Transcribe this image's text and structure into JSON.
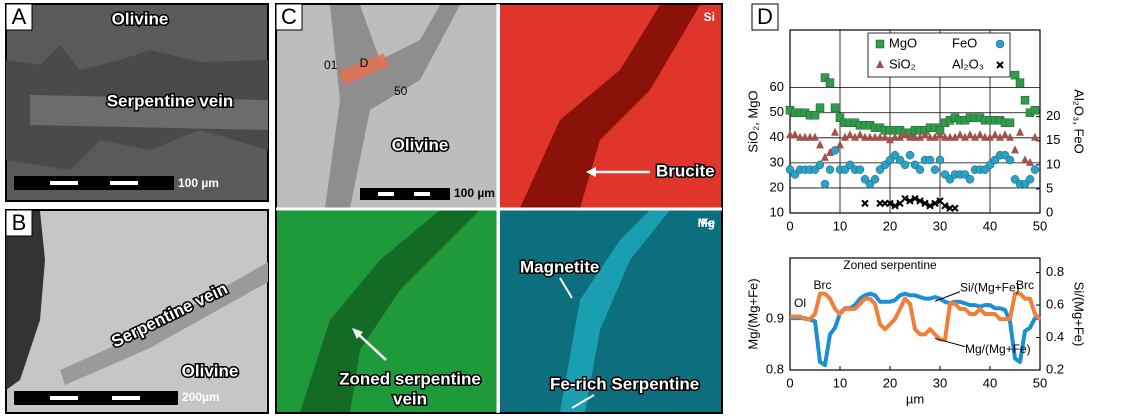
{
  "panels": {
    "A": {
      "label": "A",
      "texts": [
        "Olivine",
        "Serpentine vein"
      ],
      "scale": "100 µm"
    },
    "B": {
      "label": "B",
      "texts": [
        "Serpentine vein",
        "Olivine"
      ],
      "scale": "200µm"
    },
    "C": {
      "label": "C",
      "profile": [
        "01",
        "D",
        "50"
      ],
      "texts": [
        "Olivine"
      ],
      "scale": "100 µm",
      "maps": [
        {
          "element": "Si",
          "note": "Brucite"
        },
        {
          "element": "Mg",
          "note": [
            "Zoned serpentine",
            "vein"
          ]
        },
        {
          "element": "Fe",
          "note": [
            "Magnetite",
            "Fe-rich Serpentine"
          ]
        }
      ]
    },
    "D": {
      "label": "D"
    }
  },
  "chart_data": [
    {
      "type": "scatter",
      "xlim": [
        0,
        50
      ],
      "xticks": [
        0,
        10,
        20,
        30,
        40,
        50
      ],
      "ylim": [
        10,
        83
      ],
      "yticks": [
        10,
        20,
        30,
        40,
        50,
        60
      ],
      "y2lim": [
        0,
        38
      ],
      "y2ticks": [
        0,
        5,
        10,
        15,
        20
      ],
      "ylabel": "SiO₂, MgO",
      "y2label": "Al₂O₃, FeO",
      "grid": true,
      "series": [
        {
          "name": "MgO",
          "marker": "square",
          "color": "#2e9c4a",
          "x": [
            0,
            1,
            2,
            3,
            4,
            5,
            6,
            7,
            8,
            9,
            10,
            11,
            12,
            13,
            14,
            15,
            16,
            17,
            18,
            19,
            20,
            21,
            22,
            23,
            24,
            25,
            26,
            27,
            28,
            29,
            30,
            31,
            32,
            33,
            34,
            35,
            36,
            37,
            38,
            39,
            40,
            41,
            42,
            43,
            44,
            45,
            46,
            47,
            48,
            49
          ],
          "values": [
            51,
            50,
            50,
            50,
            49,
            49,
            52,
            64,
            62,
            52,
            48,
            46,
            46,
            46,
            45,
            45,
            45,
            44,
            44,
            43,
            43,
            43,
            43,
            42,
            42,
            43,
            43,
            43,
            44,
            44,
            43,
            46,
            47,
            48,
            47,
            47,
            48,
            48,
            48,
            47,
            47,
            47,
            47,
            46,
            46,
            65,
            62,
            55,
            50,
            51
          ]
        },
        {
          "name": "FeO",
          "marker": "circle",
          "color": "#2aa2c8",
          "axis": "y2",
          "x": [
            0,
            1,
            2,
            3,
            4,
            5,
            6,
            7,
            8,
            9,
            10,
            11,
            12,
            13,
            14,
            15,
            16,
            17,
            18,
            19,
            20,
            21,
            22,
            23,
            24,
            25,
            26,
            27,
            28,
            29,
            30,
            31,
            32,
            33,
            34,
            35,
            36,
            37,
            38,
            39,
            40,
            41,
            42,
            43,
            44,
            45,
            46,
            47,
            48,
            49
          ],
          "values": [
            9,
            8,
            9,
            9,
            9,
            9,
            10,
            6,
            9,
            13,
            9,
            9,
            10,
            9,
            9,
            7,
            6,
            7,
            9,
            10,
            11,
            12,
            11,
            10,
            12,
            10,
            9,
            11,
            11,
            9,
            11,
            8,
            7,
            8,
            8,
            8,
            7,
            9,
            9,
            9,
            10,
            11,
            12,
            12,
            11,
            7,
            6,
            6,
            7,
            9
          ]
        },
        {
          "name": "SiO₂",
          "marker": "triangle",
          "color": "#a0524b",
          "x": [
            0,
            1,
            2,
            3,
            4,
            5,
            6,
            7,
            8,
            9,
            10,
            11,
            12,
            13,
            14,
            15,
            16,
            17,
            18,
            19,
            20,
            21,
            22,
            23,
            24,
            25,
            26,
            27,
            28,
            29,
            30,
            31,
            32,
            33,
            34,
            35,
            36,
            37,
            38,
            39,
            40,
            41,
            42,
            43,
            44,
            45,
            46,
            47,
            48,
            49
          ],
          "values": [
            41,
            41,
            40,
            40,
            40,
            40,
            37,
            32,
            34,
            42,
            37,
            40,
            41,
            40,
            41,
            40,
            40,
            40,
            40,
            40,
            39,
            40,
            40,
            41,
            40,
            40,
            40,
            41,
            40,
            40,
            41,
            40,
            40,
            40,
            41,
            40,
            41,
            40,
            41,
            40,
            40,
            41,
            40,
            41,
            40,
            35,
            42,
            31,
            30,
            40
          ]
        },
        {
          "name": "Al₂O₃",
          "marker": "x",
          "color": "#000000",
          "axis": "y2",
          "x": [
            15,
            18,
            19,
            20,
            21,
            22,
            23,
            24,
            25,
            26,
            27,
            28,
            29,
            30,
            31,
            32,
            33
          ],
          "values": [
            2,
            2,
            2,
            2,
            1.5,
            2,
            3,
            2.5,
            3,
            2.5,
            2,
            1.5,
            2,
            2.5,
            1.5,
            1,
            1
          ]
        }
      ]
    },
    {
      "type": "line",
      "xlim": [
        0,
        50
      ],
      "xticks": [
        0,
        10,
        20,
        30,
        40,
        50
      ],
      "xlabel": "µm",
      "ylim": [
        0.8,
        1.02
      ],
      "yticks": [
        0.8,
        0.9
      ],
      "y2lim": [
        0.2,
        0.89
      ],
      "y2ticks": [
        0.2,
        0.4,
        0.6,
        0.8
      ],
      "ylabel": "Mg/(Mg+Fe)",
      "y2label": "Si/(Mg+Fe)",
      "grid": false,
      "annotations": [
        "Ol",
        "Brc",
        "Zoned serpentine",
        "Brc"
      ],
      "x": [
        0,
        1,
        2,
        3,
        4,
        5,
        6,
        7,
        8,
        9,
        10,
        11,
        12,
        13,
        14,
        15,
        16,
        17,
        18,
        19,
        20,
        21,
        22,
        23,
        24,
        25,
        26,
        27,
        28,
        29,
        30,
        31,
        32,
        33,
        34,
        35,
        36,
        37,
        38,
        39,
        40,
        41,
        42,
        43,
        44,
        45,
        46,
        47,
        48,
        49,
        50
      ],
      "series": [
        {
          "name": "Si/(Mg+Fe)",
          "color": "#1b8fd1",
          "axis": "y2",
          "values": [
            0.52,
            0.52,
            0.52,
            0.52,
            0.51,
            0.5,
            0.25,
            0.23,
            0.42,
            0.46,
            0.55,
            0.58,
            0.58,
            0.6,
            0.64,
            0.66,
            0.67,
            0.66,
            0.62,
            0.62,
            0.62,
            0.63,
            0.66,
            0.67,
            0.66,
            0.66,
            0.65,
            0.64,
            0.64,
            0.65,
            0.64,
            0.62,
            0.61,
            0.62,
            0.62,
            0.61,
            0.6,
            0.6,
            0.59,
            0.6,
            0.6,
            0.58,
            0.58,
            0.57,
            0.5,
            0.27,
            0.25,
            0.44,
            0.46,
            0.52,
            0.52
          ]
        },
        {
          "name": "Mg/(Mg+Fe)",
          "color": "#f07f3c",
          "values": [
            0.905,
            0.905,
            0.905,
            0.9,
            0.9,
            0.91,
            0.95,
            0.95,
            0.94,
            0.92,
            0.91,
            0.92,
            0.92,
            0.92,
            0.93,
            0.94,
            0.94,
            0.93,
            0.89,
            0.88,
            0.89,
            0.9,
            0.92,
            0.94,
            0.93,
            0.88,
            0.87,
            0.87,
            0.88,
            0.87,
            0.86,
            0.86,
            0.93,
            0.93,
            0.92,
            0.92,
            0.91,
            0.91,
            0.92,
            0.91,
            0.91,
            0.91,
            0.9,
            0.9,
            0.9,
            0.95,
            0.95,
            0.94,
            0.94,
            0.91,
            0.9
          ]
        }
      ]
    }
  ]
}
